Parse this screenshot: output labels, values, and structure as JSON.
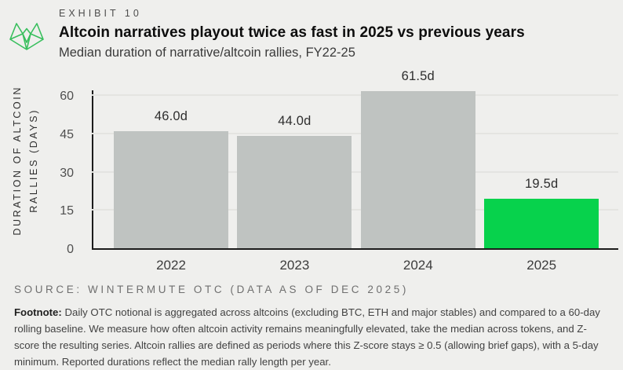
{
  "brand": {
    "logo_name": "wintermute-logo",
    "logo_green": "#38bf5d",
    "accent_green": "#07d24c",
    "background": "#efefed",
    "bar_gray": "#bfc3c1"
  },
  "header": {
    "exhibit_label": "EXHIBIT 10",
    "title": "Altcoin narratives playout twice as fast in 2025 vs previous years",
    "subtitle": "Median duration of narrative/altcoin rallies, FY22-25"
  },
  "chart_data": {
    "type": "bar",
    "title": "Median duration of narrative/altcoin rallies, FY22-25",
    "categories": [
      "2022",
      "2023",
      "2024",
      "2025"
    ],
    "values": [
      46.0,
      44.0,
      61.5,
      19.5
    ],
    "value_labels": [
      "46.0d",
      "44.0d",
      "61.5d",
      "19.5d"
    ],
    "unit": "days",
    "bar_colors": [
      "#bfc3c1",
      "#bfc3c1",
      "#bfc3c1",
      "#07d24c"
    ],
    "ylabel_line1": "DURATION OF ALTCOIN",
    "ylabel_line2": "RALLIES (DAYS)",
    "yticks": [
      0,
      15,
      30,
      45,
      60
    ],
    "ylim": [
      0,
      65
    ],
    "xlabel": "",
    "grid": "horizontal",
    "legend": "none"
  },
  "footer": {
    "source": "SOURCE: WINTERMUTE OTC (DATA AS OF DEC 2025)",
    "footnote_label": "Footnote:",
    "footnote_body": " Daily OTC notional is aggregated across altcoins (excluding BTC, ETH and major stables) and compared to a 60-day rolling baseline. We measure how often altcoin activity remains meaningfully elevated, take the median across tokens, and Z-score the resulting series. Altcoin rallies are defined as periods where this Z-score stays ≥ 0.5 (allowing brief gaps), with a 5-day minimum. Reported durations reflect the median rally length per year."
  }
}
